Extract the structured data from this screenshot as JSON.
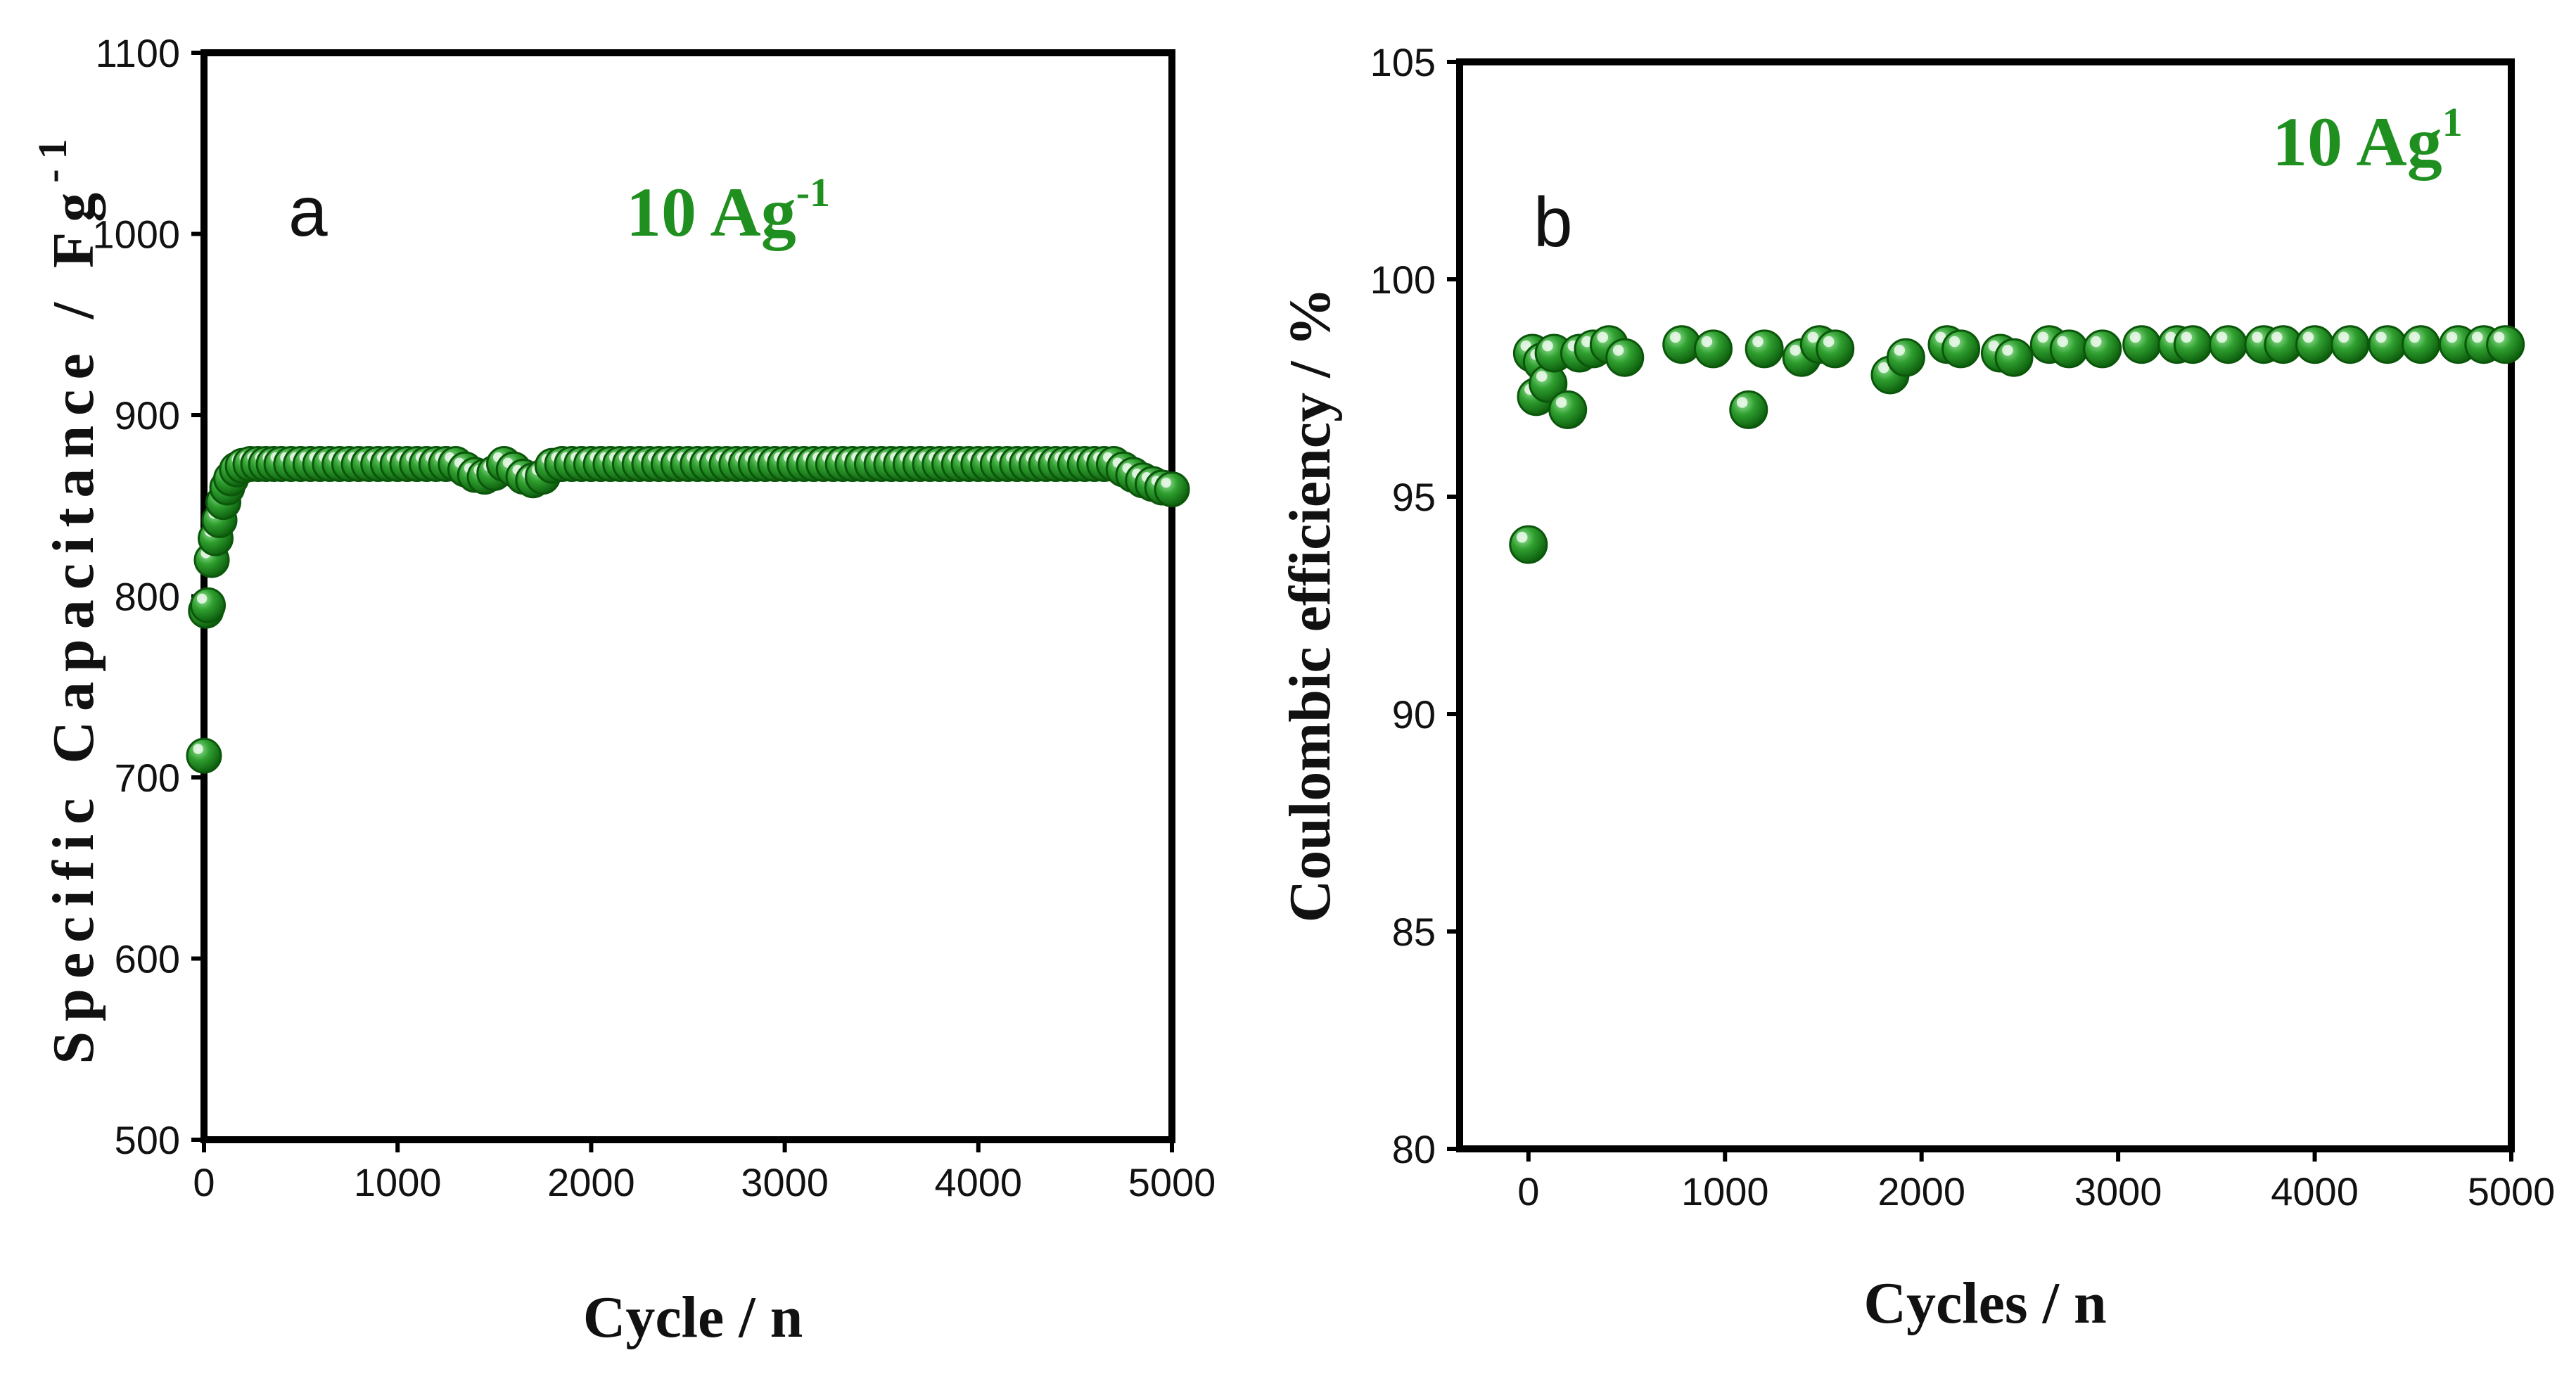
{
  "chart_data": [
    {
      "type": "scatter",
      "panel_label": "a",
      "annotation": {
        "text": "10 Ag",
        "superscript": "-1"
      },
      "xlabel": "Cycle / n",
      "ylabel": {
        "text": "Specific Capacitance / Fg",
        "superscript": "-1"
      },
      "xlim": [
        0,
        5000
      ],
      "ylim": [
        500,
        1100
      ],
      "xticks": [
        "0",
        "1000",
        "2000",
        "3000",
        "4000",
        "5000"
      ],
      "yticks": [
        "500",
        "600",
        "700",
        "800",
        "900",
        "1000",
        "1100"
      ],
      "grid": false,
      "marker_color": "#1e8c1e",
      "series": [
        {
          "name": "Specific Capacitance",
          "x": [
            0,
            10,
            20,
            40,
            60,
            80,
            100,
            120,
            140,
            170,
            200,
            240,
            280,
            320,
            360,
            400,
            450,
            500,
            550,
            600,
            650,
            700,
            750,
            800,
            850,
            900,
            950,
            1000,
            1050,
            1100,
            1150,
            1200,
            1250,
            1300,
            1350,
            1400,
            1450,
            1500,
            1550,
            1600,
            1650,
            1700,
            1750,
            1800,
            1850,
            1900,
            1950,
            2000,
            2050,
            2100,
            2150,
            2200,
            2250,
            2300,
            2350,
            2400,
            2450,
            2500,
            2550,
            2600,
            2650,
            2700,
            2750,
            2800,
            2850,
            2900,
            2950,
            3000,
            3050,
            3100,
            3150,
            3200,
            3250,
            3300,
            3350,
            3400,
            3450,
            3500,
            3550,
            3600,
            3650,
            3700,
            3750,
            3800,
            3850,
            3900,
            3950,
            4000,
            4050,
            4100,
            4150,
            4200,
            4250,
            4300,
            4350,
            4400,
            4450,
            4500,
            4550,
            4600,
            4650,
            4700,
            4750,
            4800,
            4850,
            4900,
            4950,
            5000
          ],
          "values": [
            712,
            792,
            795,
            820,
            832,
            842,
            852,
            860,
            865,
            870,
            872,
            873,
            873,
            873,
            873,
            873,
            873,
            873,
            873,
            873,
            873,
            873,
            873,
            873,
            873,
            873,
            873,
            873,
            873,
            873,
            873,
            873,
            873,
            873,
            870,
            867,
            866,
            868,
            873,
            870,
            866,
            864,
            866,
            872,
            873,
            873,
            873,
            873,
            873,
            873,
            873,
            873,
            873,
            873,
            873,
            873,
            873,
            873,
            873,
            873,
            873,
            873,
            873,
            873,
            873,
            873,
            873,
            873,
            873,
            873,
            873,
            873,
            873,
            873,
            873,
            873,
            873,
            873,
            873,
            873,
            873,
            873,
            873,
            873,
            873,
            873,
            873,
            873,
            873,
            873,
            873,
            873,
            873,
            873,
            873,
            873,
            873,
            873,
            873,
            873,
            873,
            873,
            870,
            867,
            864,
            862,
            860,
            859
          ]
        }
      ]
    },
    {
      "type": "scatter",
      "panel_label": "b",
      "annotation": {
        "text": "10 Ag",
        "superscript": "1"
      },
      "xlabel": "Cycles / n",
      "ylabel": {
        "text": "Coulombic efficiency / %"
      },
      "xlim": [
        -350,
        5000
      ],
      "ylim": [
        80,
        105
      ],
      "xticks": [
        "0",
        "1000",
        "2000",
        "3000",
        "4000",
        "5000"
      ],
      "yticks": [
        "80",
        "85",
        "90",
        "95",
        "100",
        "105"
      ],
      "grid": false,
      "marker_color": "#1e8c1e",
      "series": [
        {
          "name": "Coulombic efficiency",
          "x": [
            0,
            20,
            40,
            70,
            100,
            130,
            200,
            260,
            330,
            410,
            490,
            780,
            940,
            1120,
            1200,
            1390,
            1480,
            1560,
            1840,
            1920,
            2130,
            2200,
            2400,
            2470,
            2650,
            2750,
            2920,
            3120,
            3300,
            3380,
            3560,
            3740,
            3840,
            4000,
            4180,
            4370,
            4540,
            4730,
            4860,
            4970
          ],
          "values": [
            93.9,
            98.3,
            97.3,
            98.1,
            97.6,
            98.3,
            97.0,
            98.3,
            98.4,
            98.5,
            98.2,
            98.5,
            98.4,
            97.0,
            98.4,
            98.2,
            98.5,
            98.4,
            97.8,
            98.2,
            98.5,
            98.4,
            98.3,
            98.2,
            98.5,
            98.4,
            98.4,
            98.5,
            98.5,
            98.5,
            98.5,
            98.5,
            98.5,
            98.5,
            98.5,
            98.5,
            98.5,
            98.5,
            98.5,
            98.5
          ]
        }
      ]
    }
  ]
}
